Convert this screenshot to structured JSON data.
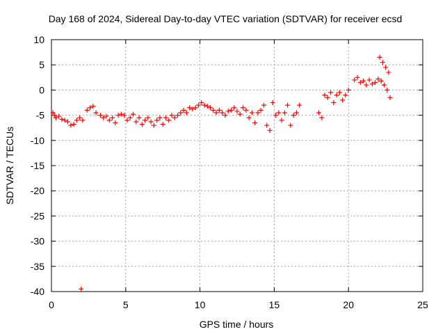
{
  "chart_data": {
    "type": "scatter",
    "title": "Day 168 of 2024, Sidereal Day-to-day VTEC variation (SDTVAR) for receiver ecsd",
    "xlabel": "GPS time / hours",
    "ylabel": "SDTVAR / TECUs",
    "xlim": [
      0,
      25
    ],
    "ylim": [
      -40,
      10
    ],
    "xticks": [
      0,
      5,
      10,
      15,
      20,
      25
    ],
    "yticks": [
      10,
      5,
      0,
      -5,
      -10,
      -15,
      -20,
      -25,
      -30,
      -35,
      -40
    ],
    "xtick_labels": [
      "0",
      "5",
      "10",
      "15",
      "20",
      "25"
    ],
    "ytick_labels": [
      "10",
      "5",
      "0",
      "-5",
      "-10",
      "-15",
      "-20",
      "-25",
      "-30",
      "-35",
      "-40"
    ],
    "grid": true,
    "marker": "plus",
    "color": "#ff0000",
    "series": [
      {
        "name": "SDTVAR",
        "x": [
          0.1,
          0.2,
          0.3,
          0.5,
          0.7,
          0.9,
          1.1,
          1.3,
          1.5,
          1.7,
          1.9,
          2.1,
          2.4,
          2.6,
          2.8,
          3.0,
          3.3,
          3.5,
          3.7,
          3.9,
          4.1,
          4.3,
          4.5,
          4.7,
          4.9,
          5.1,
          5.3,
          5.5,
          5.7,
          5.9,
          6.1,
          6.3,
          6.5,
          6.7,
          6.9,
          7.1,
          7.3,
          7.5,
          7.7,
          7.9,
          8.1,
          8.3,
          8.5,
          8.7,
          8.9,
          9.1,
          9.3,
          9.5,
          9.7,
          9.9,
          10.1,
          10.3,
          10.5,
          10.7,
          10.9,
          11.1,
          11.3,
          11.5,
          11.7,
          11.9,
          12.1,
          12.3,
          12.5,
          12.7,
          12.9,
          13.1,
          13.3,
          13.5,
          13.7,
          13.9,
          14.1,
          14.3,
          14.5,
          14.7,
          14.9,
          15.1,
          15.3,
          15.5,
          15.7,
          15.9,
          16.1,
          16.3,
          16.5,
          16.7,
          18.0,
          18.2,
          18.4,
          18.6,
          18.8,
          19.0,
          19.2,
          19.4,
          19.6,
          19.8,
          20.0,
          20.4,
          20.6,
          20.8,
          21.0,
          21.2,
          21.4,
          21.6,
          21.8,
          22.0,
          22.2,
          22.4,
          22.6,
          22.8,
          22.1,
          22.3,
          22.5,
          22.7,
          2.0
        ],
        "y": [
          -4.5,
          -5.0,
          -5.5,
          -5.2,
          -5.8,
          -6.0,
          -6.3,
          -7.0,
          -6.8,
          -6.0,
          -5.5,
          -6.0,
          -4.0,
          -3.5,
          -3.2,
          -4.5,
          -5.0,
          -5.5,
          -5.2,
          -6.0,
          -5.5,
          -6.5,
          -5.0,
          -4.8,
          -5.0,
          -6.0,
          -5.5,
          -4.8,
          -6.3,
          -5.5,
          -6.8,
          -6.0,
          -5.5,
          -6.3,
          -7.0,
          -6.0,
          -5.5,
          -6.8,
          -5.5,
          -6.0,
          -5.0,
          -5.5,
          -5.0,
          -4.5,
          -4.0,
          -4.5,
          -3.5,
          -3.8,
          -3.5,
          -3.0,
          -2.5,
          -3.0,
          -3.2,
          -3.5,
          -4.0,
          -4.5,
          -4.0,
          -4.5,
          -5.0,
          -4.2,
          -4.0,
          -3.5,
          -4.2,
          -4.8,
          -3.5,
          -4.0,
          -5.5,
          -4.5,
          -6.5,
          -4.5,
          -4.0,
          -3.0,
          -7.0,
          -8.0,
          -2.5,
          -5.0,
          -4.5,
          -6.0,
          -4.5,
          -3.0,
          -7.0,
          -5.0,
          -4.5,
          -3.0,
          -4.5,
          -5.5,
          -1.0,
          -1.5,
          -0.5,
          -2.5,
          -1.0,
          -0.5,
          -2.0,
          -1.0,
          0.0,
          2.0,
          2.5,
          1.5,
          1.8,
          1.0,
          2.0,
          1.2,
          1.5,
          2.2,
          1.8,
          1.0,
          0.0,
          -1.5,
          6.5,
          5.5,
          4.5,
          3.5,
          -39.5
        ]
      }
    ]
  }
}
